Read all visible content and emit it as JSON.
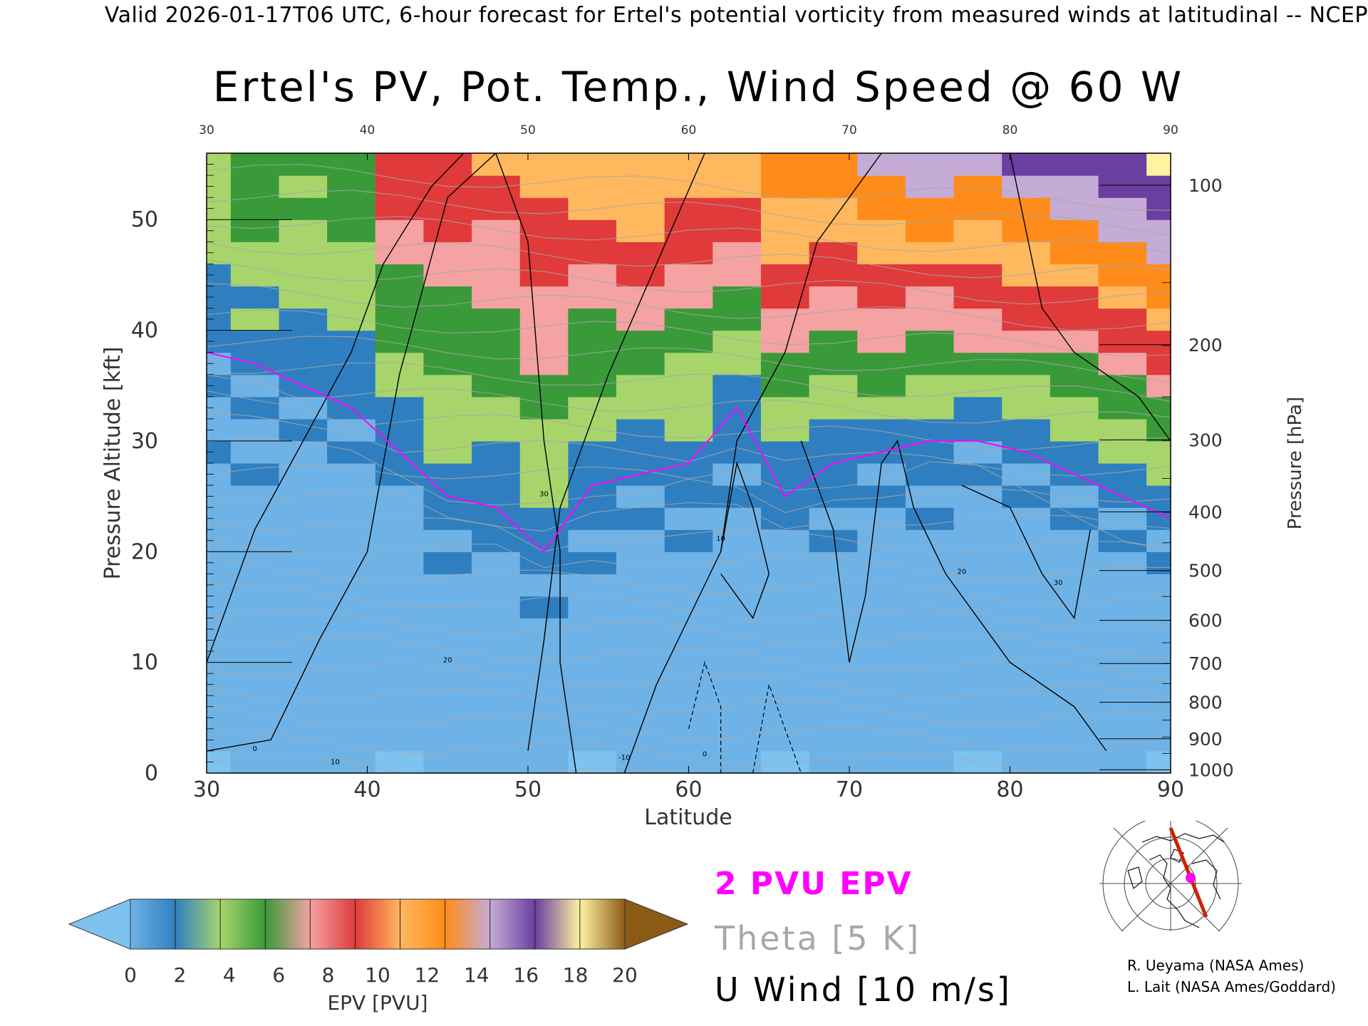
{
  "header": {
    "valid_line": "Valid 2026-01-17T06 UTC, 6-hour forecast for Ertel's potential vorticity from measured winds at latitudinal -- NCEP"
  },
  "chart_data": {
    "type": "heatmap",
    "title": "Ertel's PV, Pot. Temp., Wind Speed @ 60 W",
    "xlabel": "Latitude",
    "ylabel": "Pressure Altitude [kft]",
    "y2label": "Pressure [hPa]",
    "xlim": [
      30,
      90
    ],
    "ylim": [
      0,
      56
    ],
    "x_ticks": [
      30,
      40,
      50,
      60,
      70,
      80,
      90
    ],
    "top_x_ticks": [
      30,
      40,
      50,
      60,
      70,
      80,
      90
    ],
    "y_ticks": [
      0,
      10,
      20,
      30,
      40,
      50
    ],
    "pressure_ticks": [
      {
        "hpa": 100,
        "kft": 53.1
      },
      {
        "hpa": 200,
        "kft": 38.7
      },
      {
        "hpa": 300,
        "kft": 30.1
      },
      {
        "hpa": 400,
        "kft": 23.6
      },
      {
        "hpa": 500,
        "kft": 18.3
      },
      {
        "hpa": 600,
        "kft": 13.8
      },
      {
        "hpa": 700,
        "kft": 9.9
      },
      {
        "hpa": 800,
        "kft": 6.4
      },
      {
        "hpa": 900,
        "kft": 3.1
      },
      {
        "hpa": 1000,
        "kft": 0.3
      }
    ],
    "epv_field": {
      "description_values": "mean EPV (PVU) by latitude column",
      "latitudes": [
        30,
        33,
        36,
        39,
        42,
        45,
        48,
        51,
        54,
        57,
        60,
        63,
        66,
        69,
        72,
        75,
        78,
        81,
        84,
        87,
        90
      ],
      "tropopause_2pvu_kft": [
        38,
        37,
        35,
        33,
        29,
        25,
        24,
        20,
        26,
        27,
        28,
        33,
        25,
        28,
        29,
        30,
        30,
        29,
        27,
        25,
        23
      ],
      "stratosphere_top_pvu": [
        5,
        7,
        6,
        7,
        10,
        11,
        11,
        12,
        12,
        13,
        12,
        13,
        14,
        15,
        15,
        16,
        16,
        17,
        17,
        18,
        19
      ]
    },
    "colorbar": {
      "label": "EPV [PVU]",
      "ticks": [
        0,
        2,
        4,
        6,
        8,
        10,
        12,
        14,
        16,
        18,
        20
      ],
      "colors": [
        "#6fb3e6",
        "#2f7fc0",
        "#a7d56c",
        "#3a9a3a",
        "#f4a2a2",
        "#e03a3a",
        "#ffb85e",
        "#ff8c1a",
        "#c4acd6",
        "#6a3fa0",
        "#fdf3a0",
        "#8b5a14"
      ],
      "under_color": "#7ec3f0",
      "over_color": "#8b5a14"
    },
    "contour_labels": [
      "0",
      "10",
      "20",
      "30",
      "-10"
    ],
    "legend": [
      "2 PVU EPV",
      "Theta [5 K]",
      "U Wind [10 m/s]"
    ],
    "grid": false
  },
  "legend": {
    "pvu": "2 PVU EPV",
    "theta": "Theta [5 K]",
    "uwind": "U Wind [10 m/s]"
  },
  "credits": {
    "line1": "R. Ueyama (NASA Ames)",
    "line2": "L. Lait (NASA Ames/Goddard)"
  },
  "colors": {
    "pvu_line": "#ff00ff",
    "theta_line": "#a8a8a8",
    "wind_line": "#000000",
    "map_track": "#cc2200",
    "map_marker": "#ff00ff"
  }
}
